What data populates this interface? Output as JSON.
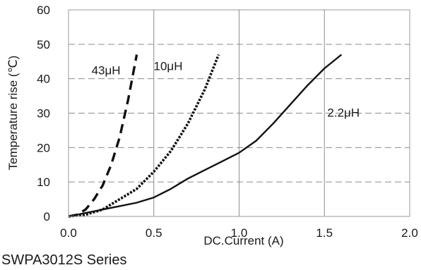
{
  "caption": "SWPA3012S Series",
  "chart_data": {
    "type": "line",
    "xlabel": "DC.Current (A)",
    "ylabel": "Temperature rise (℃)",
    "xlim": [
      0,
      2.0
    ],
    "ylim": [
      0,
      60
    ],
    "xticks": [
      "0.0",
      "0.5",
      "1.0",
      "1.5",
      "2.0"
    ],
    "yticks": [
      "0",
      "10",
      "20",
      "30",
      "40",
      "50",
      "60"
    ],
    "grid": true,
    "series": [
      {
        "name": "43μH",
        "style": "dashed",
        "x": [
          0.0,
          0.05,
          0.1,
          0.15,
          0.2,
          0.25,
          0.3,
          0.35,
          0.4
        ],
        "y": [
          0,
          0.5,
          2,
          5,
          9,
          15,
          23,
          34,
          47
        ]
      },
      {
        "name": "10μH",
        "style": "dotted",
        "x": [
          0.0,
          0.1,
          0.2,
          0.3,
          0.4,
          0.5,
          0.6,
          0.7,
          0.8,
          0.88
        ],
        "y": [
          0,
          0.5,
          2,
          5,
          8,
          13,
          19,
          27,
          37,
          47
        ]
      },
      {
        "name": "2.2μH",
        "style": "solid",
        "x": [
          0.0,
          0.1,
          0.2,
          0.3,
          0.4,
          0.5,
          0.6,
          0.7,
          0.8,
          0.9,
          1.0,
          1.1,
          1.2,
          1.3,
          1.4,
          1.5,
          1.6
        ],
        "y": [
          0,
          1,
          2,
          3,
          4,
          5.5,
          8,
          11,
          13.5,
          16,
          18.5,
          22,
          27,
          32.5,
          38,
          43,
          47
        ]
      }
    ]
  }
}
